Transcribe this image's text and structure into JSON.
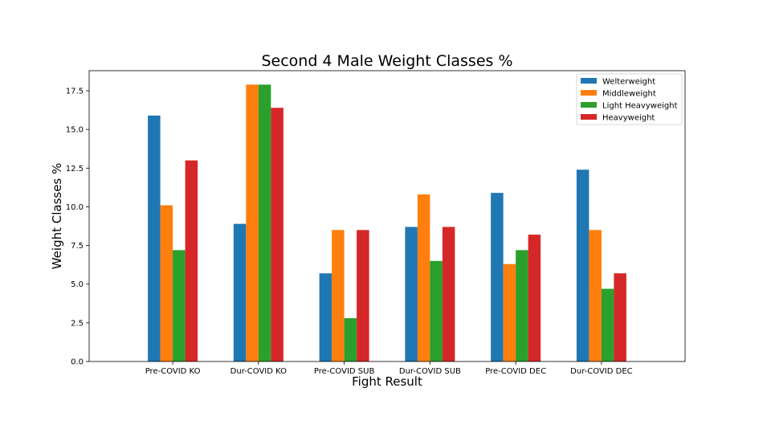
{
  "chart_data": {
    "type": "bar",
    "title": "Second 4 Male Weight Classes %",
    "xlabel": "Fight Result",
    "ylabel": "Weight Classes %",
    "ylim": [
      0,
      18.8
    ],
    "yticks": [
      "0.0",
      "2.5",
      "5.0",
      "7.5",
      "10.0",
      "12.5",
      "15.0",
      "17.5"
    ],
    "grid": false,
    "legend_position": "top-right",
    "categories": [
      "Pre-COVID KO",
      "Dur-COVID KO",
      "Pre-COVID SUB",
      "Dur-COVID SUB",
      "Pre-COVID DEC",
      "Dur-COVID DEC"
    ],
    "series": [
      {
        "name": "Welterweight",
        "color": "#1f77b4",
        "values": [
          15.9,
          8.9,
          5.7,
          8.7,
          10.9,
          12.4
        ]
      },
      {
        "name": "Middleweight",
        "color": "#ff7f0e",
        "values": [
          10.1,
          17.9,
          8.5,
          10.8,
          6.3,
          8.5
        ]
      },
      {
        "name": "Light Heavyweight",
        "color": "#2ca02c",
        "values": [
          7.2,
          17.9,
          2.8,
          6.5,
          7.2,
          4.7
        ]
      },
      {
        "name": "Heavyweight",
        "color": "#d62728",
        "values": [
          13.0,
          16.4,
          8.5,
          8.7,
          8.2,
          5.7
        ]
      }
    ]
  }
}
